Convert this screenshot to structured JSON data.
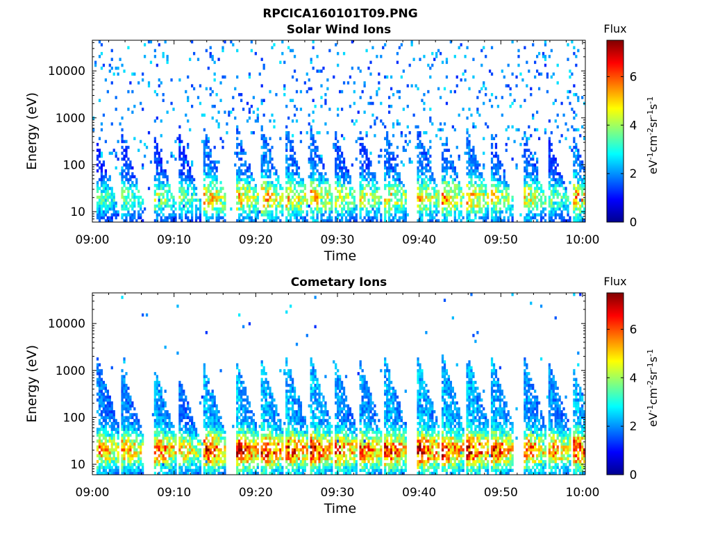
{
  "figure": {
    "title": "RPCICA160101T09.PNG"
  },
  "colorbar": {
    "label": "Flux",
    "unit_text": "eV",
    "unit_sup": [
      "-1",
      "-2",
      "-1",
      "-1"
    ],
    "unit_parts": [
      "cm",
      "sr",
      "s"
    ],
    "ticks": [
      "0",
      "2",
      "4",
      "6"
    ],
    "range": [
      0,
      7.5
    ],
    "colormap": "jet",
    "colormap_colors": [
      "#00008f",
      "#0000ff",
      "#0080ff",
      "#00ffff",
      "#80ff80",
      "#ffff00",
      "#ff8000",
      "#ff0000",
      "#800000"
    ]
  },
  "chart_data": [
    {
      "type": "heatmap",
      "title": "Solar Wind Ions",
      "xlabel": "Time",
      "ylabel": "Energy (eV)",
      "x_ticks": [
        "09:00",
        "09:10",
        "09:20",
        "09:30",
        "09:40",
        "09:50",
        "10:00"
      ],
      "x_range": [
        "09:00",
        "10:00"
      ],
      "y_ticks": [
        "10",
        "100",
        "1000",
        "10000"
      ],
      "y_scale": "log",
      "y_range": [
        6,
        45000
      ],
      "z_label": "Flux",
      "z_range": [
        0,
        7.5
      ],
      "bursts": [
        {
          "time": "09:01",
          "peak_flux": 3.8,
          "max_energy": 400
        },
        {
          "time": "09:04",
          "peak_flux": 4.2,
          "max_energy": 600
        },
        {
          "time": "09:08",
          "peak_flux": 4.5,
          "max_energy": 500
        },
        {
          "time": "09:11",
          "peak_flux": 4.0,
          "max_energy": 600
        },
        {
          "time": "09:14",
          "peak_flux": 5.8,
          "max_energy": 800
        },
        {
          "time": "09:18",
          "peak_flux": 5.5,
          "max_energy": 900
        },
        {
          "time": "09:21",
          "peak_flux": 5.8,
          "max_energy": 1000
        },
        {
          "time": "09:24",
          "peak_flux": 5.5,
          "max_energy": 900
        },
        {
          "time": "09:27",
          "peak_flux": 5.6,
          "max_energy": 900
        },
        {
          "time": "09:30",
          "peak_flux": 4.8,
          "max_energy": 700
        },
        {
          "time": "09:33",
          "peak_flux": 4.8,
          "max_energy": 800
        },
        {
          "time": "09:36",
          "peak_flux": 5.3,
          "max_energy": 900
        },
        {
          "time": "09:40",
          "peak_flux": 5.4,
          "max_energy": 900
        },
        {
          "time": "09:43",
          "peak_flux": 5.8,
          "max_energy": 800
        },
        {
          "time": "09:46",
          "peak_flux": 5.8,
          "max_energy": 900
        },
        {
          "time": "09:49",
          "peak_flux": 5.0,
          "max_energy": 700
        },
        {
          "time": "09:53",
          "peak_flux": 5.0,
          "max_energy": 700
        },
        {
          "time": "09:56",
          "peak_flux": 4.0,
          "max_energy": 500
        },
        {
          "time": "09:59",
          "peak_flux": 5.8,
          "max_energy": 600
        }
      ]
    },
    {
      "type": "heatmap",
      "title": "Cometary Ions",
      "xlabel": "Time",
      "ylabel": "Energy (eV)",
      "x_ticks": [
        "09:00",
        "09:10",
        "09:20",
        "09:30",
        "09:40",
        "09:50",
        "10:00"
      ],
      "x_range": [
        "09:00",
        "10:00"
      ],
      "y_ticks": [
        "10",
        "100",
        "1000",
        "10000"
      ],
      "y_scale": "log",
      "y_range": [
        6,
        45000
      ],
      "z_label": "Flux",
      "z_range": [
        0,
        7.5
      ],
      "bursts": [
        {
          "time": "09:01",
          "peak_flux": 6.0,
          "max_energy": 2500
        },
        {
          "time": "09:04",
          "peak_flux": 6.0,
          "max_energy": 1500
        },
        {
          "time": "09:08",
          "peak_flux": 6.5,
          "max_energy": 1500
        },
        {
          "time": "09:11",
          "peak_flux": 5.5,
          "max_energy": 1000
        },
        {
          "time": "09:14",
          "peak_flux": 7.0,
          "max_energy": 1800
        },
        {
          "time": "09:18",
          "peak_flux": 7.2,
          "max_energy": 2000
        },
        {
          "time": "09:21",
          "peak_flux": 7.2,
          "max_energy": 2200
        },
        {
          "time": "09:24",
          "peak_flux": 7.0,
          "max_energy": 2500
        },
        {
          "time": "09:27",
          "peak_flux": 7.2,
          "max_energy": 2500
        },
        {
          "time": "09:30",
          "peak_flux": 6.5,
          "max_energy": 2000
        },
        {
          "time": "09:33",
          "peak_flux": 6.5,
          "max_energy": 2200
        },
        {
          "time": "09:36",
          "peak_flux": 7.0,
          "max_energy": 2500
        },
        {
          "time": "09:40",
          "peak_flux": 7.2,
          "max_energy": 2500
        },
        {
          "time": "09:43",
          "peak_flux": 7.0,
          "max_energy": 2800
        },
        {
          "time": "09:46",
          "peak_flux": 7.3,
          "max_energy": 3000
        },
        {
          "time": "09:49",
          "peak_flux": 6.8,
          "max_energy": 2500
        },
        {
          "time": "09:53",
          "peak_flux": 6.5,
          "max_energy": 2500
        },
        {
          "time": "09:56",
          "peak_flux": 6.3,
          "max_energy": 2000
        },
        {
          "time": "09:59",
          "peak_flux": 7.2,
          "max_energy": 1500
        }
      ]
    }
  ]
}
